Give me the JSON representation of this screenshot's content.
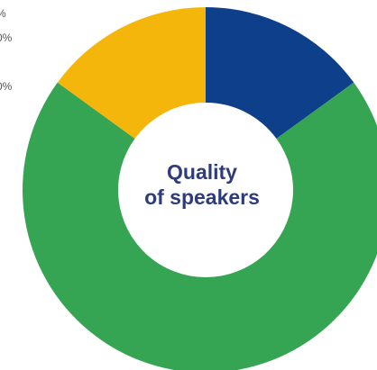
{
  "chart_data": {
    "type": "pie",
    "title": [
      "Quality",
      "of speakers"
    ],
    "categories": [
      null,
      null,
      null
    ],
    "values": [
      15,
      70,
      15
    ],
    "colors": [
      "#0e3f8b",
      "#36a553",
      "#f5b60b"
    ],
    "donut": true,
    "annotations": [
      "%",
      "0%",
      "0%"
    ]
  }
}
